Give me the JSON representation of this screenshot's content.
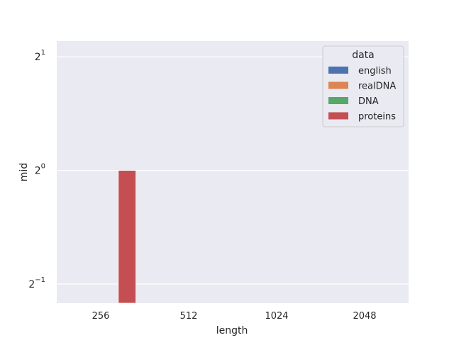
{
  "chart_data": {
    "type": "bar",
    "xlabel": "length",
    "ylabel": "mid",
    "categories": [
      "256",
      "512",
      "1024",
      "2048"
    ],
    "y_scale": "log2",
    "ylim": [
      0.445,
      2.2
    ],
    "y_ticks": [
      {
        "value": 0.5,
        "base": "2",
        "exp": "−1"
      },
      {
        "value": 1,
        "base": "2",
        "exp": "0"
      },
      {
        "value": 2,
        "base": "2",
        "exp": "1"
      }
    ],
    "grid": true,
    "legend": {
      "title": "data",
      "placement": "top-right"
    },
    "series": [
      {
        "name": "english",
        "color": "#4c72b0",
        "values": [
          null,
          null,
          null,
          null
        ]
      },
      {
        "name": "realDNA",
        "color": "#dd8452",
        "values": [
          null,
          null,
          null,
          null
        ]
      },
      {
        "name": "DNA",
        "color": "#55a868",
        "values": [
          null,
          null,
          null,
          null
        ]
      },
      {
        "name": "proteins",
        "color": "#c44e52",
        "values": [
          1,
          null,
          null,
          null
        ]
      }
    ]
  }
}
